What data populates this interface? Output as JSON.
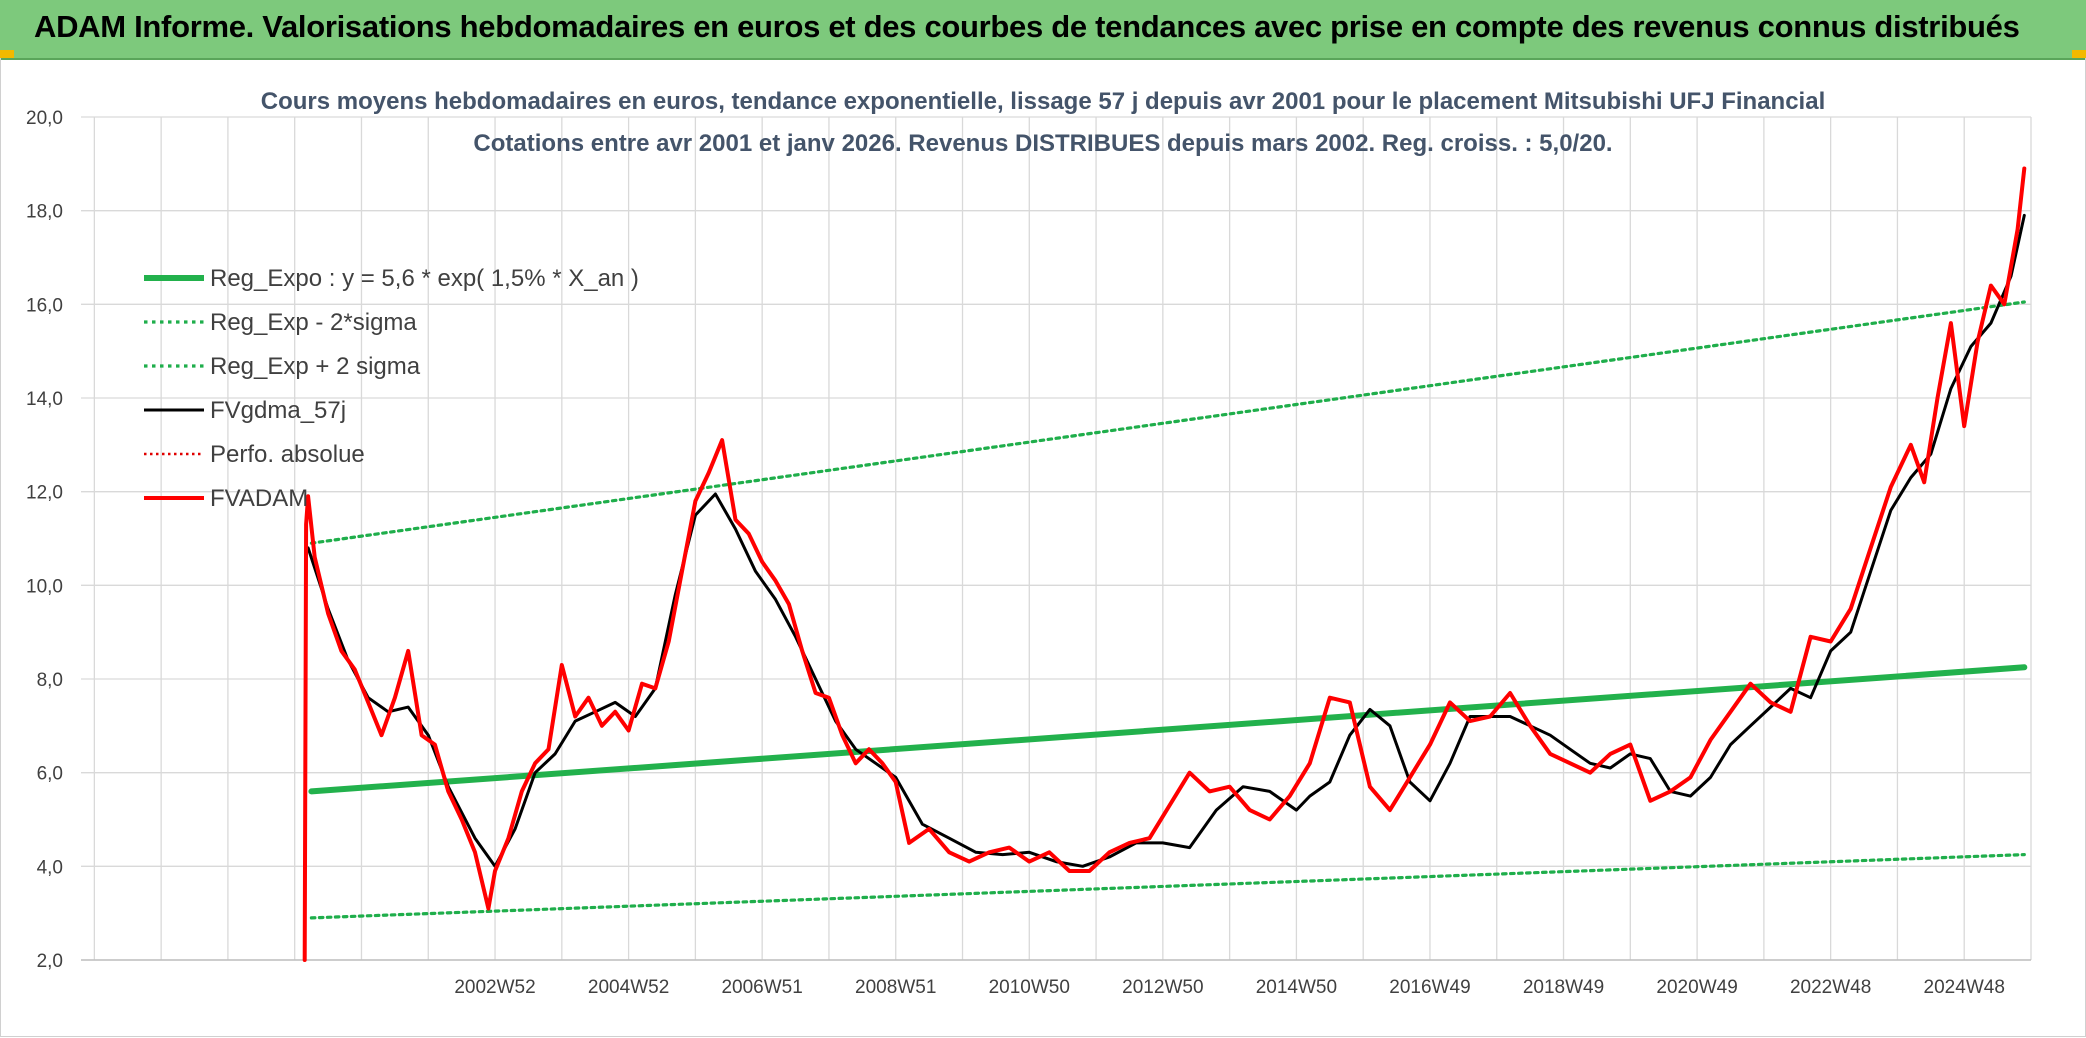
{
  "banner": {
    "title": "ADAM Informe. Valorisations hebdomadaires en euros et des courbes de tendances avec prise en compte des revenus connus distribués"
  },
  "colors": {
    "banner_bg": "#7dc97c",
    "reg_expo": "#22b14c",
    "reg_bands": "#1fae4b",
    "fvgdma": "#000000",
    "perfo": "#e00000",
    "fvadam": "#ff0000"
  },
  "chart_data": {
    "type": "line",
    "title_line1": "Cours moyens hebdomadaires en euros, tendance exponentielle, lissage 57 j depuis avr 2001 pour le placement Mitsubishi UFJ Financial",
    "title_line2": "Cotations entre avr 2001 et janv 2026. Revenus DISTRIBUES depuis mars 2002. Reg. croiss. : 5,0/20.",
    "xlabel": "",
    "ylabel": "",
    "ylim": [
      2.0,
      20.0
    ],
    "xlim": [
      1996.8,
      2026.0
    ],
    "y_ticks": [
      "2,0",
      "4,0",
      "6,0",
      "8,0",
      "10,0",
      "12,0",
      "14,0",
      "16,0",
      "18,0",
      "20,0"
    ],
    "y_tick_values": [
      2,
      4,
      6,
      8,
      10,
      12,
      14,
      16,
      18,
      20
    ],
    "x_ticks": [
      "2002W52",
      "2004W52",
      "2006W51",
      "2008W51",
      "2010W50",
      "2012W50",
      "2014W50",
      "2016W49",
      "2018W49",
      "2020W49",
      "2022W48",
      "2024W48"
    ],
    "x_tick_years": [
      2003.0,
      2005.0,
      2007.0,
      2009.0,
      2011.0,
      2013.0,
      2015.0,
      2017.0,
      2019.0,
      2021.0,
      2023.0,
      2025.0
    ],
    "grid": true,
    "legend_position": "top-left",
    "series": [
      {
        "name": "Reg_Expo : y = 5,6 * exp( 1,5% *  X_an )",
        "style": "solid-thick-green",
        "x": [
          2000.25,
          2025.9
        ],
        "values": [
          5.6,
          8.25
        ]
      },
      {
        "name": "Reg_Exp - 2*sigma",
        "style": "dotted-green",
        "x": [
          2000.25,
          2025.9
        ],
        "values": [
          2.9,
          4.25
        ]
      },
      {
        "name": "Reg_Exp + 2 sigma",
        "style": "dotted-green",
        "x": [
          2000.25,
          2025.9
        ],
        "values": [
          10.9,
          16.05
        ]
      },
      {
        "name": "FVgdma_57j",
        "style": "solid-black",
        "x": [
          2000.2,
          2000.5,
          2000.8,
          2001.1,
          2001.4,
          2001.7,
          2002.0,
          2002.3,
          2002.7,
          2003.0,
          2003.3,
          2003.6,
          2003.9,
          2004.2,
          2004.5,
          2004.8,
          2005.1,
          2005.4,
          2005.7,
          2006.0,
          2006.3,
          2006.6,
          2006.9,
          2007.2,
          2007.5,
          2007.8,
          2008.1,
          2008.4,
          2008.7,
          2009.0,
          2009.4,
          2009.8,
          2010.2,
          2010.6,
          2011.0,
          2011.4,
          2011.8,
          2012.2,
          2012.6,
          2013.0,
          2013.4,
          2013.8,
          2014.2,
          2014.6,
          2015.0,
          2015.2,
          2015.5,
          2015.8,
          2016.1,
          2016.4,
          2016.7,
          2017.0,
          2017.3,
          2017.6,
          2017.9,
          2018.2,
          2018.5,
          2018.8,
          2019.1,
          2019.4,
          2019.7,
          2020.0,
          2020.3,
          2020.6,
          2020.9,
          2021.2,
          2021.5,
          2021.8,
          2022.1,
          2022.4,
          2022.7,
          2023.0,
          2023.3,
          2023.6,
          2023.9,
          2024.2,
          2024.5,
          2024.8,
          2025.1,
          2025.4,
          2025.7,
          2025.9
        ],
        "values": [
          10.8,
          9.5,
          8.4,
          7.6,
          7.3,
          7.4,
          6.8,
          5.7,
          4.6,
          4.0,
          4.8,
          6.0,
          6.4,
          7.1,
          7.3,
          7.5,
          7.2,
          7.8,
          9.8,
          11.5,
          11.95,
          11.2,
          10.3,
          9.7,
          8.9,
          8.0,
          7.1,
          6.5,
          6.2,
          5.9,
          4.9,
          4.6,
          4.3,
          4.25,
          4.3,
          4.1,
          4.0,
          4.2,
          4.5,
          4.5,
          4.4,
          5.2,
          5.7,
          5.6,
          5.2,
          5.5,
          5.8,
          6.8,
          7.35,
          7.0,
          5.8,
          5.4,
          6.2,
          7.2,
          7.2,
          7.2,
          7.0,
          6.8,
          6.5,
          6.2,
          6.1,
          6.4,
          6.3,
          5.6,
          5.5,
          5.9,
          6.6,
          7.0,
          7.4,
          7.8,
          7.6,
          8.6,
          9.0,
          10.3,
          11.6,
          12.3,
          12.8,
          14.2,
          15.1,
          15.6,
          16.6,
          17.9
        ]
      },
      {
        "name": "Perfo. absolue",
        "style": "dotted-red",
        "x": [],
        "values": []
      },
      {
        "name": "FVADAM",
        "style": "solid-red-thick",
        "x": [
          2000.15,
          2000.17,
          2000.2,
          2000.3,
          2000.5,
          2000.7,
          2000.9,
          2001.1,
          2001.3,
          2001.5,
          2001.7,
          2001.9,
          2002.1,
          2002.3,
          2002.5,
          2002.7,
          2002.9,
          2003.0,
          2003.2,
          2003.4,
          2003.6,
          2003.8,
          2004.0,
          2004.2,
          2004.4,
          2004.6,
          2004.8,
          2005.0,
          2005.2,
          2005.4,
          2005.6,
          2005.8,
          2006.0,
          2006.2,
          2006.4,
          2006.6,
          2006.8,
          2007.0,
          2007.2,
          2007.4,
          2007.6,
          2007.8,
          2008.0,
          2008.2,
          2008.4,
          2008.6,
          2008.8,
          2009.0,
          2009.2,
          2009.5,
          2009.8,
          2010.1,
          2010.4,
          2010.7,
          2011.0,
          2011.3,
          2011.6,
          2011.9,
          2012.2,
          2012.5,
          2012.8,
          2013.1,
          2013.4,
          2013.7,
          2014.0,
          2014.3,
          2014.6,
          2014.9,
          2015.2,
          2015.5,
          2015.8,
          2016.1,
          2016.4,
          2016.7,
          2017.0,
          2017.3,
          2017.6,
          2017.9,
          2018.2,
          2018.5,
          2018.8,
          2019.1,
          2019.4,
          2019.7,
          2020.0,
          2020.3,
          2020.6,
          2020.9,
          2021.2,
          2021.5,
          2021.8,
          2022.1,
          2022.4,
          2022.7,
          2023.0,
          2023.3,
          2023.6,
          2023.9,
          2024.2,
          2024.4,
          2024.6,
          2024.8,
          2025.0,
          2025.2,
          2025.4,
          2025.6,
          2025.8,
          2025.9
        ],
        "values": [
          2.0,
          11.3,
          11.9,
          10.6,
          9.4,
          8.6,
          8.2,
          7.5,
          6.8,
          7.6,
          8.6,
          6.8,
          6.6,
          5.6,
          5.0,
          4.3,
          3.1,
          3.9,
          4.6,
          5.6,
          6.2,
          6.5,
          8.3,
          7.2,
          7.6,
          7.0,
          7.3,
          6.9,
          7.9,
          7.8,
          8.8,
          10.3,
          11.8,
          12.4,
          13.1,
          11.4,
          11.1,
          10.5,
          10.1,
          9.6,
          8.6,
          7.7,
          7.6,
          6.8,
          6.2,
          6.5,
          6.2,
          5.8,
          4.5,
          4.8,
          4.3,
          4.1,
          4.3,
          4.4,
          4.1,
          4.3,
          3.9,
          3.9,
          4.3,
          4.5,
          4.6,
          5.3,
          6.0,
          5.6,
          5.7,
          5.2,
          5.0,
          5.5,
          6.2,
          7.6,
          7.5,
          5.7,
          5.2,
          5.9,
          6.6,
          7.5,
          7.1,
          7.2,
          7.7,
          7.0,
          6.4,
          6.2,
          6.0,
          6.4,
          6.6,
          5.4,
          5.6,
          5.9,
          6.7,
          7.3,
          7.9,
          7.5,
          7.3,
          8.9,
          8.8,
          9.5,
          10.8,
          12.1,
          13.0,
          12.2,
          14.0,
          15.6,
          13.4,
          15.2,
          16.4,
          16.0,
          17.6,
          18.9
        ]
      }
    ]
  }
}
